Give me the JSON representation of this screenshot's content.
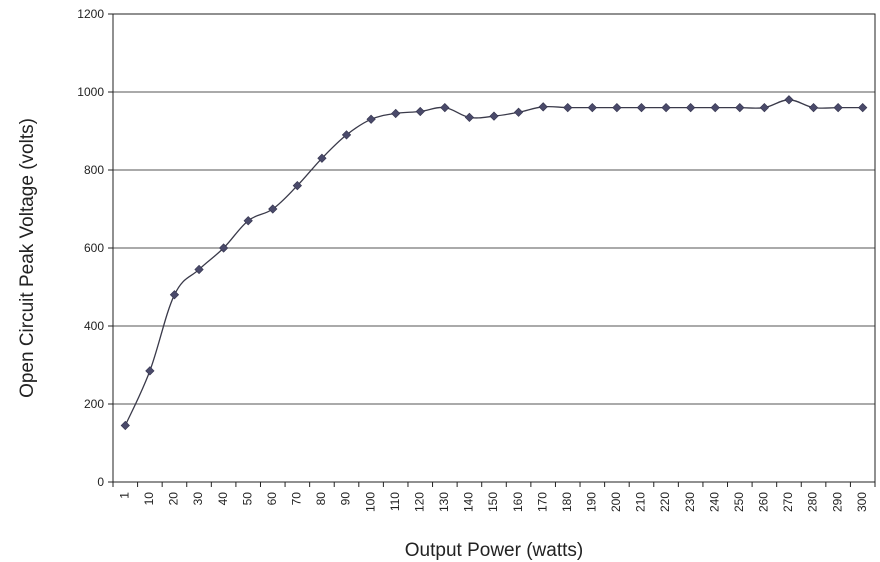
{
  "chart_data": {
    "type": "line",
    "title": "",
    "xlabel": "Output Power (watts)",
    "ylabel": "Open Circuit Peak Voltage (volts)",
    "ylim": [
      0,
      1200
    ],
    "yticks": [
      "0",
      "200",
      "400",
      "600",
      "800",
      "1000",
      "1200"
    ],
    "grid": "horizontal",
    "legend": "none",
    "categories": [
      "1",
      "10",
      "20",
      "30",
      "40",
      "50",
      "60",
      "70",
      "80",
      "90",
      "100",
      "110",
      "120",
      "130",
      "140",
      "150",
      "160",
      "170",
      "180",
      "190",
      "200",
      "210",
      "220",
      "230",
      "240",
      "250",
      "260",
      "270",
      "280",
      "290",
      "300"
    ],
    "series": [
      {
        "values": [
          145,
          285,
          480,
          545,
          600,
          670,
          700,
          760,
          830,
          890,
          930,
          945,
          950,
          960,
          935,
          938,
          948,
          962,
          960,
          960,
          960,
          960,
          960,
          960,
          960,
          960,
          960,
          980,
          960,
          960,
          960
        ],
        "color": "#4a4a6a"
      }
    ]
  }
}
